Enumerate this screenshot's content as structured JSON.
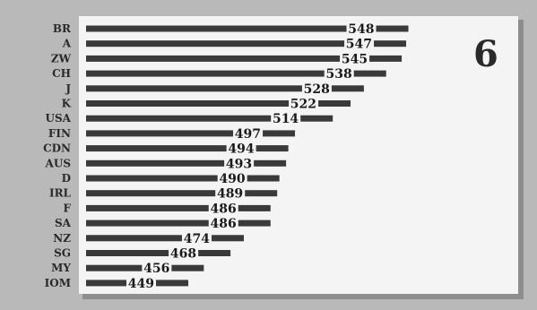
{
  "panel_number": "6",
  "chart_data": {
    "type": "bar",
    "orientation": "horizontal",
    "categories": [
      "BR",
      "A",
      "ZW",
      "CH",
      "J",
      "K",
      "USA",
      "FIN",
      "CDN",
      "AUS",
      "D",
      "IRL",
      "F",
      "SA",
      "NZ",
      "SG",
      "MY",
      "IOM"
    ],
    "values": [
      548,
      547,
      545,
      538,
      528,
      522,
      514,
      497,
      494,
      493,
      490,
      489,
      486,
      486,
      474,
      468,
      456,
      449
    ],
    "title": "",
    "xlabel": "",
    "ylabel": "",
    "grid": false,
    "legend": "none"
  }
}
